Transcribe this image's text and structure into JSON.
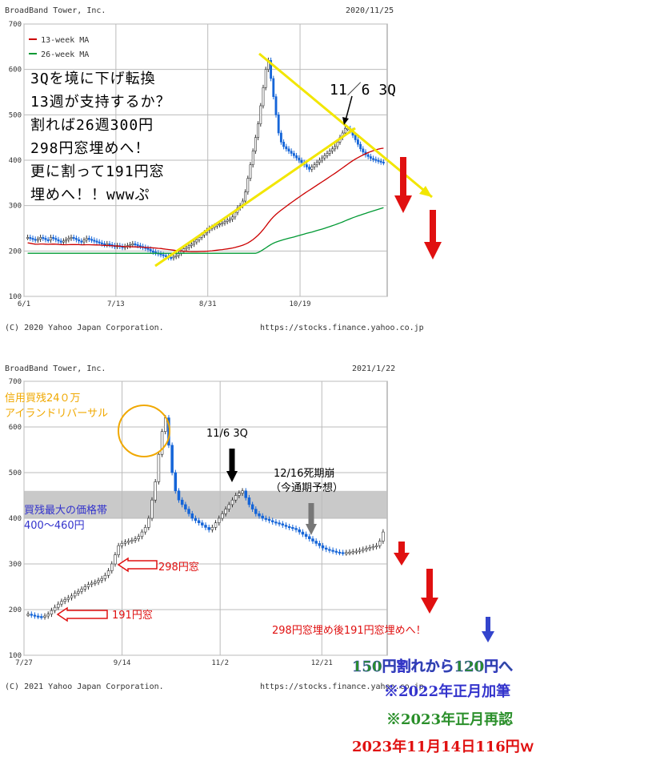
{
  "chart_data": [
    {
      "type": "candlestick",
      "company": "BroadBand Tower, Inc.",
      "date": "2020/11/25",
      "copyright": "(C) 2020 Yahoo Japan Corporation.",
      "source": "https://stocks.finance.yahoo.co.jp",
      "ylim": [
        100,
        700
      ],
      "yticks": [
        "700",
        "600",
        "500",
        "400",
        "300",
        "200",
        "100"
      ],
      "xticks": [
        "6/1",
        "7/13",
        "8/31",
        "10/19"
      ],
      "legend": [
        "13-week MA",
        "26-week MA"
      ],
      "closes": [
        230,
        228,
        226,
        224,
        226,
        230,
        228,
        225,
        224,
        230,
        228,
        225,
        222,
        220,
        222,
        225,
        228,
        230,
        228,
        225,
        222,
        220,
        224,
        228,
        226,
        224,
        222,
        220,
        218,
        216,
        214,
        216,
        214,
        212,
        210,
        212,
        210,
        208,
        210,
        212,
        214,
        216,
        214,
        212,
        210,
        208,
        206,
        204,
        200,
        198,
        196,
        194,
        192,
        190,
        188,
        186,
        185,
        188,
        190,
        195,
        200,
        205,
        208,
        212,
        215,
        220,
        225,
        230,
        235,
        240,
        245,
        250,
        252,
        255,
        258,
        260,
        262,
        265,
        268,
        270,
        275,
        285,
        295,
        300,
        310,
        330,
        360,
        390,
        420,
        450,
        480,
        520,
        560,
        600,
        620,
        580,
        540,
        500,
        460,
        440,
        430,
        425,
        420,
        415,
        410,
        405,
        400,
        395,
        390,
        385,
        380,
        385,
        390,
        395,
        400,
        405,
        410,
        415,
        420,
        425,
        430,
        440,
        450,
        460,
        470,
        470,
        465,
        455,
        445,
        435,
        425,
        418,
        412,
        408,
        404,
        402,
        400,
        398,
        396,
        395
      ]
    },
    {
      "type": "candlestick",
      "company": "BroadBand Tower, Inc.",
      "date": "2021/1/22",
      "copyright": "(C) 2021 Yahoo Japan Corporation.",
      "source": "https://stocks.finance.yahoo.co.jp",
      "ylim": [
        100,
        700
      ],
      "yticks": [
        "700",
        "600",
        "500",
        "400",
        "300",
        "200",
        "100"
      ],
      "xticks": [
        "7/27",
        "9/14",
        "11/2",
        "12/21"
      ],
      "closes": [
        190,
        188,
        186,
        185,
        184,
        186,
        190,
        198,
        205,
        212,
        218,
        222,
        226,
        230,
        236,
        240,
        245,
        250,
        255,
        258,
        260,
        264,
        268,
        275,
        285,
        300,
        320,
        340,
        345,
        348,
        350,
        352,
        355,
        360,
        370,
        380,
        400,
        440,
        480,
        540,
        590,
        620,
        560,
        500,
        460,
        440,
        430,
        420,
        410,
        400,
        395,
        390,
        385,
        380,
        375,
        380,
        390,
        400,
        410,
        420,
        430,
        440,
        450,
        455,
        460,
        445,
        430,
        420,
        410,
        405,
        400,
        398,
        395,
        392,
        390,
        388,
        385,
        382,
        380,
        378,
        375,
        370,
        365,
        360,
        355,
        350,
        345,
        340,
        335,
        332,
        330,
        328,
        326,
        325,
        324,
        325,
        326,
        327,
        328,
        330,
        332,
        334,
        336,
        338,
        340,
        350,
        370
      ]
    }
  ],
  "annotations": {
    "text1_lines": [
      "3Qを境に下げ転換",
      "13週が支持するか？",
      "割れば26週300円",
      "298円窓埋めへ！",
      "更に割って191円窓",
      "埋めへ！！wwwぷ"
    ],
    "label_1106_top": "11／6 3Q",
    "label_credit": "信用買残24０万",
    "label_island": "アイランドリバーサル",
    "label_1106_bottom": "11/6 3Q",
    "label_1216": "12/16死期崩",
    "label_forecast": "（今通期予想）",
    "label_zone": "買残最大の価格帯",
    "label_zone_range": "400～460円",
    "label_298": "298円窓",
    "label_191": "191円窓",
    "label_gapfill": "298円窓埋め後191円窓埋めへ！",
    "label_150": "150円割れから120円へ",
    "label_2022": "※2022年正月加筆",
    "label_2023": "※2023年正月再認",
    "label_2023nov": "2023年11月14日116円ｗ"
  },
  "colors": {
    "up": "#ffffff",
    "down": "#1565d8",
    "ma13": "#cc0000",
    "ma26": "#009933",
    "yellow": "#f2e600",
    "red": "#e01010",
    "orange": "#f0a800",
    "blue_text": "#3333cc",
    "green_text": "#2a8f2a",
    "zone": "#c0c0c0"
  }
}
